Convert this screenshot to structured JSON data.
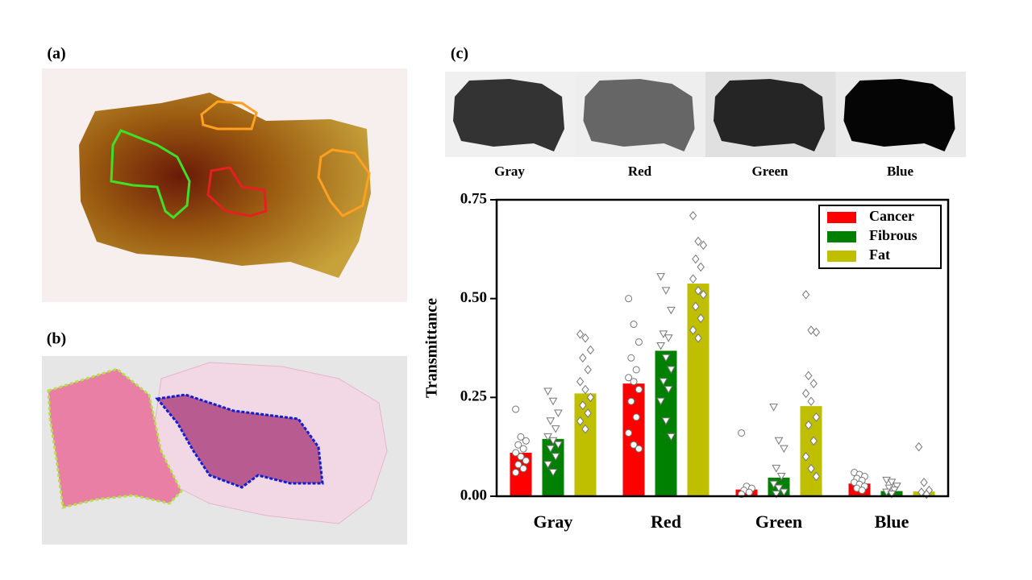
{
  "panels": {
    "a": {
      "label": "(a)"
    },
    "b": {
      "label": "(b)"
    },
    "c": {
      "label": "(c)",
      "images": [
        "Gray",
        "Red",
        "Green",
        "Blue"
      ]
    }
  },
  "chart_data": {
    "type": "bar",
    "ylabel": "Transmittance",
    "categories": [
      "Gray",
      "Red",
      "Green",
      "Blue"
    ],
    "ylim": [
      0,
      0.75
    ],
    "yticks": [
      {
        "value": 0,
        "label": "0.00"
      },
      {
        "value": 0.25,
        "label": "0.25"
      },
      {
        "value": 0.5,
        "label": "0.50"
      },
      {
        "value": 0.75,
        "label": "0.75"
      }
    ],
    "legend": "upper-right",
    "series": [
      {
        "name": "Cancer",
        "color": "#ff0000",
        "marker": "circle",
        "values": [
          0.11,
          0.285,
          0.017,
          0.032
        ],
        "points": [
          [
            0.22,
            0.15,
            0.14,
            0.13,
            0.12,
            0.11,
            0.1,
            0.09,
            0.08,
            0.07,
            0.06
          ],
          [
            0.5,
            0.435,
            0.39,
            0.35,
            0.32,
            0.3,
            0.29,
            0.27,
            0.24,
            0.2,
            0.16,
            0.13,
            0.12
          ],
          [
            0.16,
            0.025,
            0.02,
            0.015,
            0.01,
            0.005
          ],
          [
            0.06,
            0.055,
            0.05,
            0.045,
            0.04,
            0.035,
            0.03,
            0.025,
            0.02,
            0.015
          ]
        ]
      },
      {
        "name": "Fibrous",
        "color": "#008000",
        "marker": "triangle",
        "values": [
          0.145,
          0.368,
          0.047,
          0.013
        ],
        "points": [
          [
            0.265,
            0.24,
            0.21,
            0.19,
            0.17,
            0.15,
            0.14,
            0.13,
            0.12,
            0.1,
            0.08,
            0.06
          ],
          [
            0.555,
            0.52,
            0.47,
            0.41,
            0.4,
            0.38,
            0.35,
            0.32,
            0.29,
            0.27,
            0.24,
            0.19,
            0.15
          ],
          [
            0.225,
            0.14,
            0.12,
            0.07,
            0.05,
            0.03,
            0.02,
            0.01,
            0.005
          ],
          [
            0.04,
            0.035,
            0.025,
            0.02,
            0.015,
            0.01,
            0.005
          ]
        ]
      },
      {
        "name": "Fat",
        "color": "#bfbf00",
        "marker": "diamond",
        "values": [
          0.26,
          0.538,
          0.228,
          0.012
        ],
        "points": [
          [
            0.41,
            0.4,
            0.37,
            0.35,
            0.32,
            0.29,
            0.27,
            0.25,
            0.23,
            0.21,
            0.19,
            0.17
          ],
          [
            0.71,
            0.645,
            0.635,
            0.6,
            0.58,
            0.55,
            0.52,
            0.51,
            0.48,
            0.45,
            0.42,
            0.4
          ],
          [
            0.51,
            0.42,
            0.415,
            0.305,
            0.285,
            0.26,
            0.24,
            0.2,
            0.18,
            0.14,
            0.1,
            0.07,
            0.05
          ],
          [
            0.125,
            0.035,
            0.015,
            0.01,
            0.005
          ]
        ]
      }
    ]
  }
}
